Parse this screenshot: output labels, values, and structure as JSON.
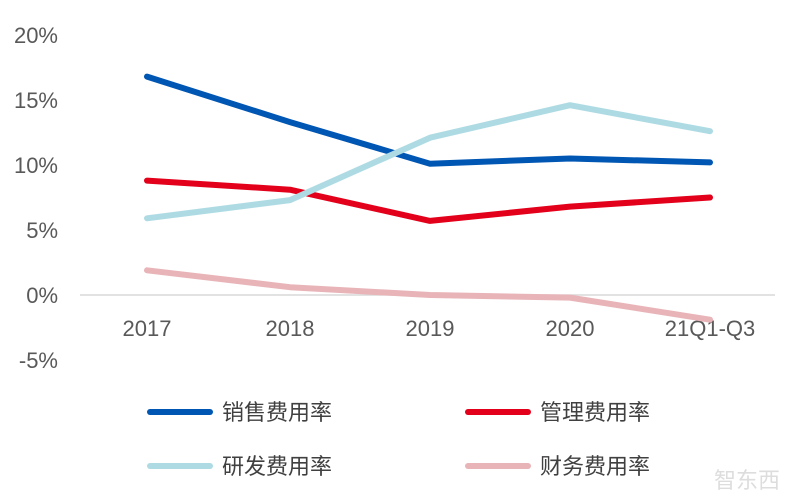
{
  "chart_data": {
    "type": "line",
    "categories": [
      "2017",
      "2018",
      "2019",
      "2020",
      "21Q1-Q3"
    ],
    "ylim": [
      -5,
      20
    ],
    "yticks": [
      -5,
      0,
      5,
      10,
      15,
      20
    ],
    "ytick_labels": [
      "-5%",
      "0%",
      "5%",
      "10%",
      "15%",
      "20%"
    ],
    "grid": false,
    "legend_position": "bottom",
    "series": [
      {
        "name": "销售费用率",
        "color": "#0056b3",
        "values": [
          16.8,
          13.3,
          10.1,
          10.5,
          10.2
        ]
      },
      {
        "name": "管理费用率",
        "color": "#e3001b",
        "values": [
          8.8,
          8.1,
          5.7,
          6.8,
          7.5
        ]
      },
      {
        "name": "研发费用率",
        "color": "#aedbe3",
        "values": [
          5.9,
          7.3,
          12.1,
          14.6,
          12.6
        ]
      },
      {
        "name": "财务费用率",
        "color": "#e8b4b8",
        "values": [
          1.9,
          0.6,
          0.0,
          -0.2,
          -1.9
        ]
      }
    ]
  },
  "watermark": "智东西"
}
